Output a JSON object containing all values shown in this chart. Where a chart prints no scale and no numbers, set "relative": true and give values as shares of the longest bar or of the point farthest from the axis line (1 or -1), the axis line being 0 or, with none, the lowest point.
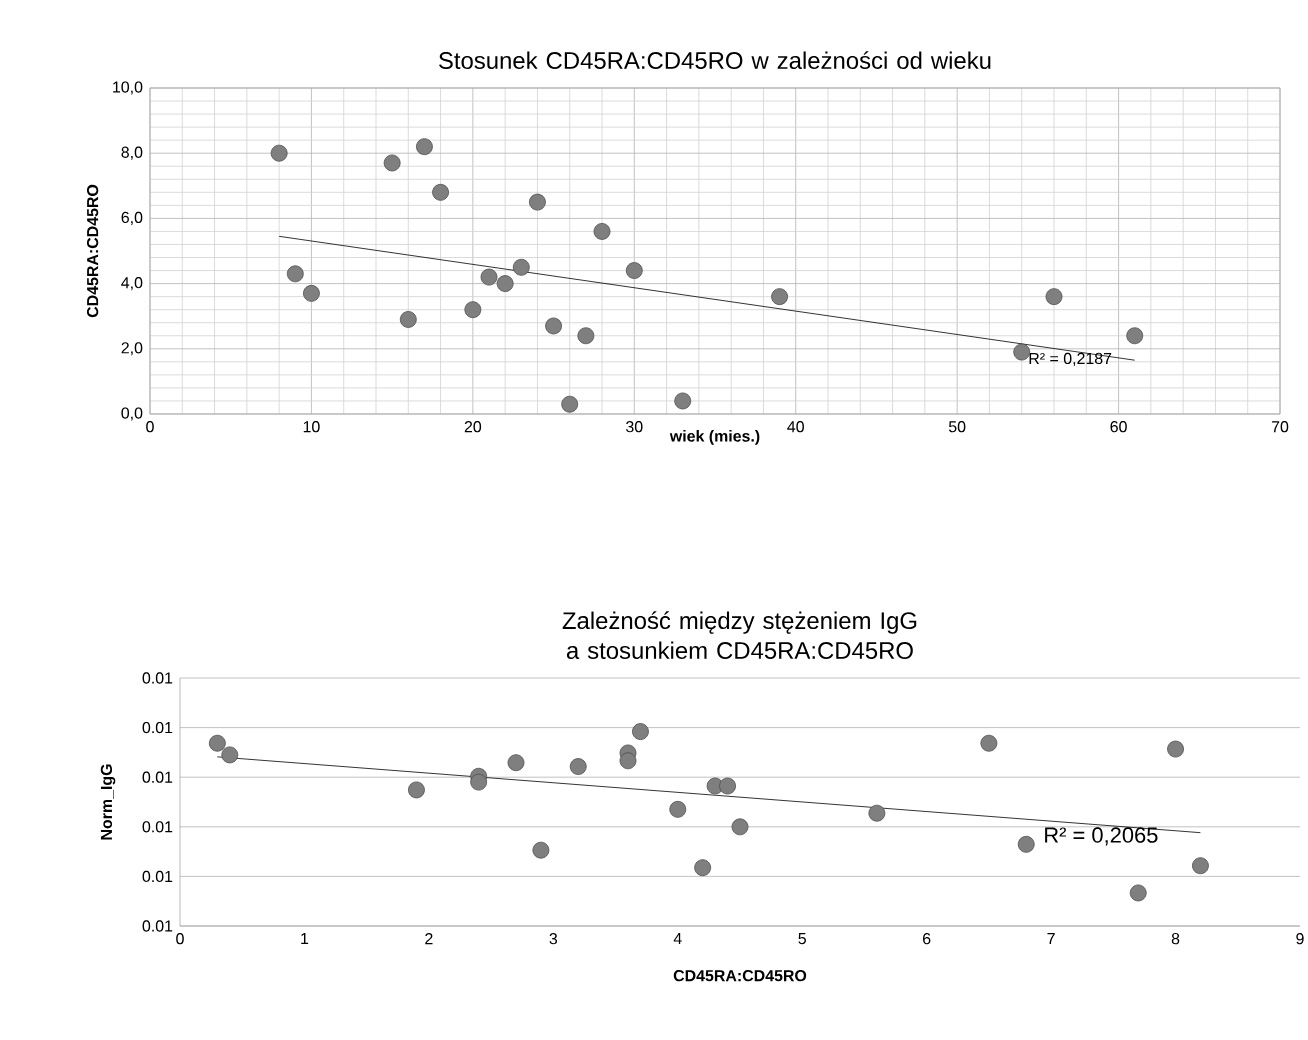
{
  "chart_data": [
    {
      "type": "scatter",
      "title": "Stosunek CD45RA:CD45RO w zależności od wieku",
      "xlabel": "wiek (mies.)",
      "ylabel": "CD45RA:CD45RO",
      "xlim": [
        0,
        70
      ],
      "xticks": [
        0,
        10,
        20,
        30,
        40,
        50,
        60,
        70
      ],
      "ylim": [
        0,
        10
      ],
      "yticks": [
        {
          "value": 0,
          "label": "0,0"
        },
        {
          "value": 2,
          "label": "2,0"
        },
        {
          "value": 4,
          "label": "4,0"
        },
        {
          "value": 6,
          "label": "6,0"
        },
        {
          "value": 8,
          "label": "8,0"
        },
        {
          "value": 10,
          "label": "10,0"
        }
      ],
      "grid": true,
      "marker": "circle",
      "series": [
        {
          "color": "#7f7f7f",
          "x": [
            8,
            9,
            10,
            15,
            16,
            17,
            18,
            20,
            21,
            22,
            23,
            24,
            25,
            26,
            27,
            28,
            30,
            33,
            39,
            54,
            56,
            61
          ],
          "values": [
            8.0,
            4.3,
            3.7,
            7.7,
            2.9,
            8.2,
            6.8,
            3.2,
            4.2,
            4.0,
            4.5,
            6.5,
            2.7,
            0.3,
            2.4,
            5.6,
            4.4,
            0.4,
            3.6,
            1.9,
            3.6,
            2.4
          ]
        },
        {
          "type": "line",
          "marker": "none",
          "color": "#000000",
          "x": [
            8,
            61
          ],
          "values": [
            5.45,
            1.65
          ]
        }
      ],
      "annotations": [
        {
          "text": "R² = 0,2187",
          "x": 57,
          "y": 1.95
        }
      ]
    },
    {
      "type": "scatter",
      "title": "Zależność między stężeniem IgG a stosunkiem CD45RA:CD45RO",
      "xlabel": "CD45RA:CD45RO",
      "ylabel": "Norm_IgG",
      "xlim": [
        0,
        9
      ],
      "xticks": [
        0,
        1,
        2,
        3,
        4,
        5,
        6,
        7,
        8,
        9
      ],
      "relative": true,
      "grid": "y",
      "marker": "circle",
      "series": [
        {
          "color": "#7f7f7f",
          "x": [
            0.3,
            0.4,
            1.9,
            2.4,
            2.4,
            2.7,
            2.9,
            3.2,
            3.6,
            3.6,
            3.7,
            4.0,
            4.2,
            4.3,
            4.4,
            4.5,
            5.6,
            6.5,
            6.8,
            7.7,
            8.0,
            8.2
          ],
          "values": [
            0.94,
            0.88,
            0.7,
            0.77,
            0.74,
            0.84,
            0.39,
            0.82,
            0.89,
            0.85,
            1,
            0.6,
            0.3,
            0.72,
            0.72,
            0.51,
            0.58,
            0.94,
            0.42,
            0.17,
            0.91,
            0.31
          ]
        },
        {
          "type": "line",
          "marker": "none",
          "color": "#000000",
          "x": [
            0.3,
            8.2
          ],
          "values": [
            0.87,
            0.48
          ]
        }
      ],
      "annotations": [
        "0.01",
        "0.01",
        "0.01",
        "0.01",
        "0.01",
        "0.01",
        {
          "text": "R² = 0,2065",
          "x": 7.4,
          "y": 0.52
        }
      ]
    }
  ]
}
